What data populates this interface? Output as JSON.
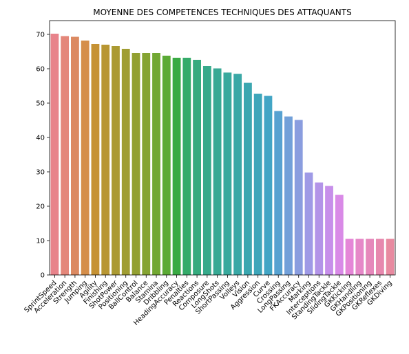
{
  "chart_data": {
    "type": "bar",
    "title": "MOYENNE DES COMPETENCES TECHNIQUES DES ATTAQUANTS",
    "xlabel": "",
    "ylabel": "",
    "ylim": [
      0,
      74
    ],
    "yticks": [
      0,
      10,
      20,
      30,
      40,
      50,
      60,
      70
    ],
    "grid": false,
    "categories": [
      "SprintSpeed",
      "Acceleration",
      "Strength",
      "Jumping",
      "Agility",
      "Finishing",
      "ShotPower",
      "Positioning",
      "BallControl",
      "Balance",
      "Stamina",
      "Dribbling",
      "HeadingAccuracy",
      "Penalties",
      "Reactions",
      "Composure",
      "LongShots",
      "ShortPassing",
      "Volleys",
      "Vision",
      "Aggression",
      "Curve",
      "Crossing",
      "LongPassing",
      "FKAccuracy",
      "Marking",
      "Interceptions",
      "StandingTackle",
      "SlidingTackle",
      "GKKicking",
      "GKHandling",
      "GKPositioning",
      "GKReflexes",
      "GKDiving"
    ],
    "values": [
      70.2,
      69.5,
      69.3,
      68.2,
      67.2,
      67.0,
      66.6,
      65.8,
      64.6,
      64.6,
      64.6,
      63.8,
      63.2,
      63.2,
      62.6,
      60.8,
      60.1,
      58.9,
      58.5,
      55.9,
      52.7,
      52.1,
      47.7,
      46.1,
      45.1,
      29.8,
      26.9,
      25.9,
      23.3,
      10.5,
      10.5,
      10.5,
      10.5,
      10.5
    ],
    "colors": [
      "#e8838b",
      "#e4877a",
      "#dc8a62",
      "#d58e4a",
      "#c69234",
      "#b89632",
      "#ab9a32",
      "#a09d32",
      "#93a031",
      "#85a432",
      "#72a832",
      "#5baa35",
      "#39aa44",
      "#35ab6a",
      "#36ab7e",
      "#37aa8b",
      "#38a994",
      "#39a99d",
      "#3aa8a6",
      "#3ba7b0",
      "#3ea6ba",
      "#42a5c5",
      "#57a2d1",
      "#72a0d9",
      "#8a9ddf",
      "#9f9ae6",
      "#b394e8",
      "#c78fea",
      "#d98ae7",
      "#e586d7",
      "#e688c8",
      "#e688bb",
      "#e788ae",
      "#e88aa0"
    ]
  }
}
